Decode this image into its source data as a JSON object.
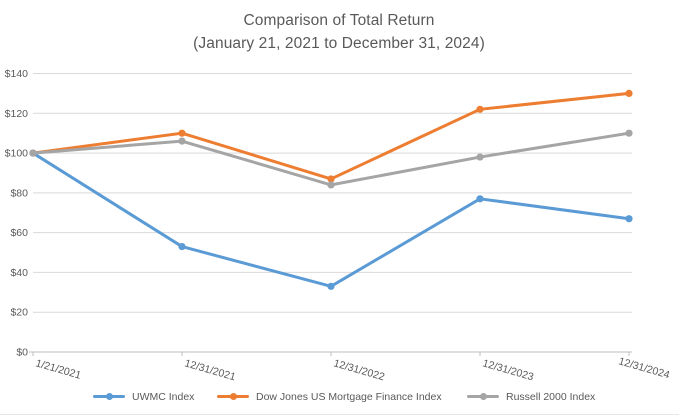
{
  "title": {
    "line1": "Comparison of Total Return",
    "line2": "(January 21, 2021 to December 31, 2024)"
  },
  "chart_data": {
    "type": "line",
    "title": "Comparison of Total Return (January 21, 2021 to December 31, 2024)",
    "categories": [
      "1/21/2021",
      "12/31/2021",
      "12/31/2022",
      "12/31/2023",
      "12/31/2024"
    ],
    "series": [
      {
        "name": "UWMC Index",
        "color": "#5B9BD5",
        "values": [
          100,
          53,
          33,
          77,
          67
        ]
      },
      {
        "name": "Dow Jones US Mortgage Finance Index",
        "color": "#ED7D31",
        "values": [
          100,
          110,
          87,
          122,
          130
        ]
      },
      {
        "name": "Russell 2000 Index",
        "color": "#A5A5A5",
        "values": [
          100,
          106,
          84,
          98,
          110
        ]
      }
    ],
    "y_axis": {
      "min": 0,
      "max": 140,
      "tick_step": 20,
      "tick_labels": [
        "$0",
        "$20",
        "$40",
        "$60",
        "$80",
        "$100",
        "$120",
        "$140"
      ],
      "grid": true
    },
    "legend": {
      "position": "bottom"
    },
    "colors": {
      "gridline": "#D9D9D9",
      "axis_line": "#BFBFBF",
      "label_text": "#595959",
      "background": "#FFFFFF"
    }
  }
}
